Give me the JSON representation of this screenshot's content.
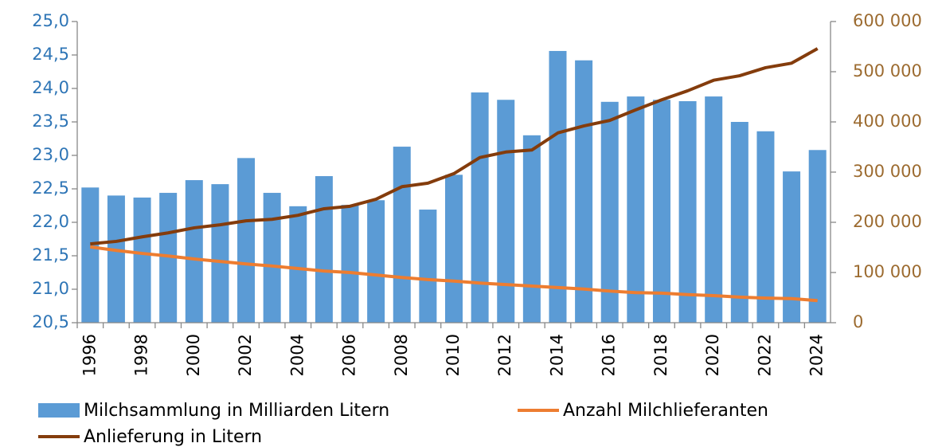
{
  "chart_data": {
    "type": "bar-line",
    "categories": [
      "1996",
      null,
      "1998",
      null,
      "2000",
      null,
      "2002",
      null,
      "2004",
      null,
      "2006",
      null,
      "2008",
      null,
      "2010",
      null,
      "2012",
      null,
      "2014",
      null,
      "2016",
      null,
      "2018",
      null,
      "2020",
      null,
      "2022",
      null,
      "2024"
    ],
    "series": [
      {
        "name": "Milchsammlung in Milliarden Litern",
        "type": "bar",
        "color": "#5b9bd5",
        "values": [
          22.52,
          22.4,
          22.37,
          22.44,
          22.63,
          22.57,
          22.96,
          22.44,
          22.24,
          22.69,
          22.26,
          22.33,
          23.13,
          22.19,
          22.71,
          23.94,
          23.83,
          23.3,
          24.56,
          24.42,
          23.8,
          23.88,
          23.83,
          23.81,
          23.88,
          23.5,
          23.36,
          22.76,
          23.08
        ]
      },
      {
        "name": "Anzahl Milchlieferanten",
        "type": "line",
        "axis": "y2",
        "color": "#ed7d31",
        "values": [
          151000,
          144000,
          138000,
          133000,
          127000,
          122000,
          117000,
          113000,
          108000,
          103000,
          100000,
          95000,
          90000,
          86000,
          83000,
          79000,
          76000,
          73000,
          70000,
          67000,
          63000,
          60000,
          59000,
          56000,
          54000,
          51000,
          49000,
          48000,
          44000
        ]
      },
      {
        "name": "Anlieferung in Litern",
        "type": "line",
        "axis": "y2",
        "color": "#843c0c",
        "values": [
          157000,
          162000,
          171000,
          179000,
          189000,
          195000,
          203000,
          206000,
          214000,
          227000,
          232000,
          246000,
          271000,
          278000,
          297000,
          329000,
          340000,
          344000,
          378000,
          392000,
          403000,
          424000,
          444000,
          462000,
          483000,
          492000,
          508000,
          517000,
          546000
        ]
      }
    ],
    "ylim": [
      20.5,
      25.0
    ],
    "yticks": [
      {
        "value": 20.5,
        "label": "20,5"
      },
      {
        "value": 21,
        "label": "21,0"
      },
      {
        "value": 21.5,
        "label": "21,5"
      },
      {
        "value": 22,
        "label": "22,0"
      },
      {
        "value": 22.5,
        "label": "22,5"
      },
      {
        "value": 23,
        "label": "23,0"
      },
      {
        "value": 23.5,
        "label": "23,5"
      },
      {
        "value": 24,
        "label": "24,0"
      },
      {
        "value": 24.5,
        "label": "24,5"
      },
      {
        "value": 25,
        "label": "25,0"
      }
    ],
    "y2lim": [
      0,
      600000
    ],
    "y2ticks": [
      0,
      {
        "value": 100000,
        "label": "100 000"
      },
      {
        "value": 200000,
        "label": "200 000"
      },
      {
        "value": 300000,
        "label": "300 000"
      },
      {
        "value": 400000,
        "label": "400 000"
      },
      {
        "value": 500000,
        "label": "500 000"
      },
      {
        "value": 600000,
        "label": "600 000"
      }
    ],
    "grid": false
  }
}
